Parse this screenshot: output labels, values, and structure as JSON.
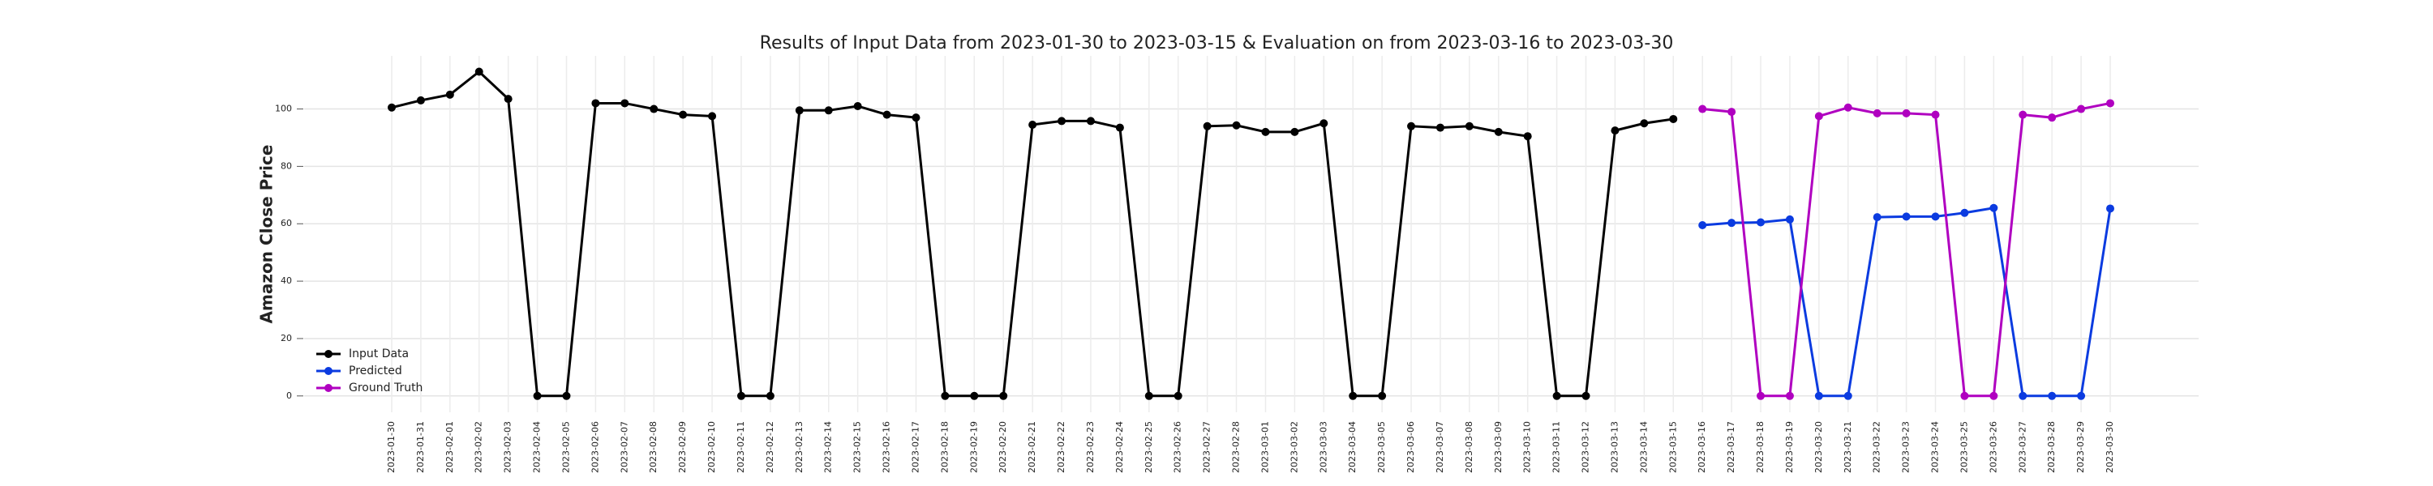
{
  "chart_data": {
    "type": "line",
    "title": "Results of Input Data from 2023-01-30 to 2023-03-15 & Evaluation on from 2023-03-16 to 2023-03-30",
    "ylabel": "Amazon Close Price",
    "categories": [
      "2023-01-30",
      "2023-01-31",
      "2023-02-01",
      "2023-02-02",
      "2023-02-03",
      "2023-02-04",
      "2023-02-05",
      "2023-02-06",
      "2023-02-07",
      "2023-02-08",
      "2023-02-09",
      "2023-02-10",
      "2023-02-11",
      "2023-02-12",
      "2023-02-13",
      "2023-02-14",
      "2023-02-15",
      "2023-02-16",
      "2023-02-17",
      "2023-02-18",
      "2023-02-19",
      "2023-02-20",
      "2023-02-21",
      "2023-02-22",
      "2023-02-23",
      "2023-02-24",
      "2023-02-25",
      "2023-02-26",
      "2023-02-27",
      "2023-02-28",
      "2023-03-01",
      "2023-03-02",
      "2023-03-03",
      "2023-03-04",
      "2023-03-05",
      "2023-03-06",
      "2023-03-07",
      "2023-03-08",
      "2023-03-09",
      "2023-03-10",
      "2023-03-11",
      "2023-03-12",
      "2023-03-13",
      "2023-03-14",
      "2023-03-15",
      "2023-03-16",
      "2023-03-17",
      "2023-03-18",
      "2023-03-19",
      "2023-03-20",
      "2023-03-21",
      "2023-03-22",
      "2023-03-23",
      "2023-03-24",
      "2023-03-25",
      "2023-03-26",
      "2023-03-27",
      "2023-03-28",
      "2023-03-29",
      "2023-03-30"
    ],
    "series": [
      {
        "name": "Input Data",
        "color": "#000000",
        "values": [
          100.5,
          103,
          105,
          113,
          103.5,
          0,
          0,
          102,
          102,
          100,
          98,
          97.5,
          0,
          0,
          99.5,
          99.5,
          101,
          98,
          97,
          0,
          0,
          0,
          94.5,
          95.8,
          95.8,
          93.5,
          0,
          0,
          94,
          94.3,
          92,
          92,
          95,
          0,
          0,
          94,
          93.5,
          94,
          92,
          90.5,
          0,
          0,
          92.5,
          95,
          96.5,
          null,
          null,
          null,
          null,
          null,
          null,
          null,
          null,
          null,
          null,
          null,
          null,
          null,
          null,
          null
        ]
      },
      {
        "name": "Predicted",
        "color": "#0b3be0",
        "values": [
          null,
          null,
          null,
          null,
          null,
          null,
          null,
          null,
          null,
          null,
          null,
          null,
          null,
          null,
          null,
          null,
          null,
          null,
          null,
          null,
          null,
          null,
          null,
          null,
          null,
          null,
          null,
          null,
          null,
          null,
          null,
          null,
          null,
          null,
          null,
          null,
          null,
          null,
          null,
          null,
          null,
          null,
          null,
          null,
          null,
          59.5,
          60.3,
          60.5,
          61.5,
          0,
          0,
          62.3,
          62.5,
          62.5,
          63.8,
          65.5,
          0,
          0,
          0,
          65.3
        ]
      },
      {
        "name": "Ground Truth",
        "color": "#b000c0",
        "values": [
          null,
          null,
          null,
          null,
          null,
          null,
          null,
          null,
          null,
          null,
          null,
          null,
          null,
          null,
          null,
          null,
          null,
          null,
          null,
          null,
          null,
          null,
          null,
          null,
          null,
          null,
          null,
          null,
          null,
          null,
          null,
          null,
          null,
          null,
          null,
          null,
          null,
          null,
          null,
          null,
          null,
          null,
          null,
          null,
          null,
          100,
          99,
          0,
          0,
          97.5,
          100.5,
          98.5,
          98.5,
          98,
          0,
          0,
          98,
          97,
          100,
          102
        ]
      }
    ],
    "ylim": [
      -5.7,
      118.5
    ],
    "yticks": [
      0,
      20,
      40,
      60,
      80,
      100
    ],
    "grid": true,
    "legend": "lower left"
  }
}
